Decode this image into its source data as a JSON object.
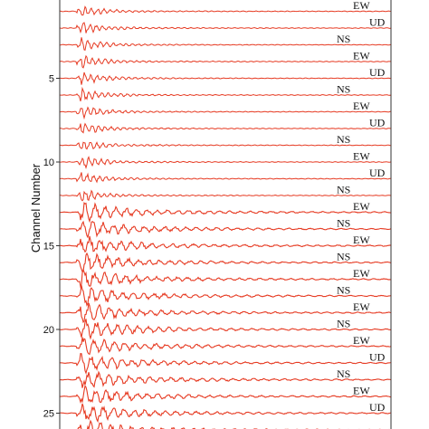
{
  "chart_data": {
    "type": "line",
    "title": "",
    "xlabel": "",
    "ylabel": "Channel Number",
    "ylim": [
      0,
      26
    ],
    "y_ticks": [
      5,
      10,
      15,
      20,
      25
    ],
    "grid": false,
    "trace_color": "#e63a22",
    "trace_count": 26,
    "component_labels": [
      "EW",
      "UD",
      "NS",
      "EW",
      "UD",
      "NS",
      "EW",
      "UD",
      "NS",
      "EW",
      "UD",
      "NS",
      "EW",
      "NS",
      "EW",
      "NS",
      "EW",
      "NS",
      "EW",
      "NS",
      "EW",
      "UD",
      "NS",
      "EW",
      "UD"
    ],
    "component_label_channels": [
      1,
      2,
      3,
      4,
      5,
      6,
      7,
      8,
      9,
      10,
      11,
      12,
      13,
      14,
      15,
      16,
      17,
      18,
      19,
      20,
      21,
      22,
      23,
      24,
      25
    ]
  }
}
